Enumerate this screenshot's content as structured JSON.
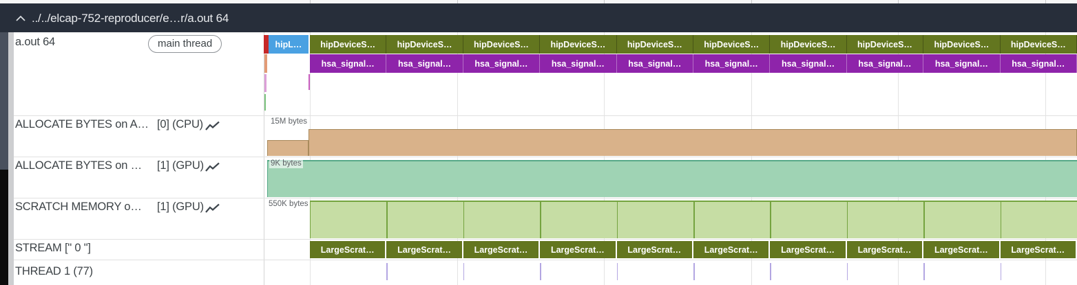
{
  "header": {
    "title": "../../elcap-752-reproducer/e…r/a.out 64"
  },
  "process_track": {
    "name": "a.out 64",
    "badge": "main thread"
  },
  "tracks": [
    {
      "name": "ALLOCATE BYTES on A…",
      "scope": "[0] (CPU)",
      "value": "15M bytes"
    },
    {
      "name": "ALLOCATE BYTES on …",
      "scope": "[1] (GPU)",
      "value": "9K bytes"
    },
    {
      "name": "SCRATCH MEMORY o…",
      "scope": "[1] (GPU)",
      "value": "550K bytes"
    },
    {
      "name": "STREAM [\" 0 \"]"
    },
    {
      "name": "THREAD 1 (77)"
    }
  ],
  "slices": {
    "api_row": {
      "first": "hipL…",
      "repeated": "hipDeviceS…",
      "count": 10
    },
    "signal_row": {
      "repeated": "hsa_signal…",
      "count": 10
    },
    "stream_row": {
      "repeated": "LargeScrat…",
      "count": 10
    }
  },
  "colors": {
    "accent_red": "#c62828",
    "slice_blue": "#4aa1e2",
    "slice_olive": "#63761f",
    "slice_purple": "#8e24aa",
    "slice_salmon": "#e39b76",
    "slice_pink": "#dc9fd8",
    "slice_magenta": "#c95fc0",
    "slice_green": "#7cc47f",
    "counter_tan": "#d9b28a",
    "counter_tan_border": "#a98a5c",
    "counter_teal": "#9fd3b4",
    "counter_teal_border": "#57a988",
    "counter_lime": "#c6dda4",
    "counter_lime_border": "#74a33f",
    "thread_tick": "#b3a6e2",
    "header_bg": "#272e3a"
  }
}
